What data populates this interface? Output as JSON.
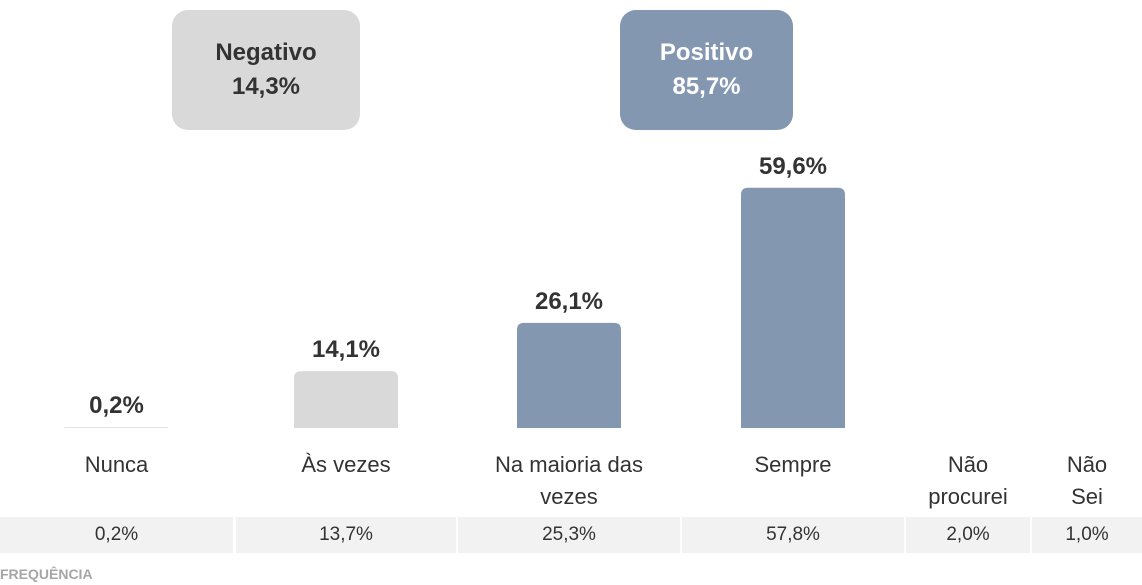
{
  "chart_data": {
    "type": "bar",
    "categories": [
      "Nunca",
      "Às vezes",
      "Na maioria das vezes",
      "Sempre",
      "Não procurei",
      "Não Sei"
    ],
    "values": [
      0.2,
      14.1,
      26.1,
      59.6,
      null,
      null
    ],
    "value_labels": [
      "0,2%",
      "14,1%",
      "26,1%",
      "59,6%",
      null,
      null
    ],
    "colors": [
      "#d9d9d9",
      "#d9d9d9",
      "#8497b0",
      "#8497b0",
      null,
      null
    ],
    "groups": [
      {
        "label": "Negativo",
        "value_label": "14,3%",
        "color": "#d9d9d9"
      },
      {
        "label": "Positivo",
        "value_label": "85,7%",
        "color": "#8497b0"
      }
    ]
  },
  "table": {
    "row": [
      "0,2%",
      "13,7%",
      "25,3%",
      "57,8%",
      "2,0%",
      "1,0%"
    ],
    "footer": "FREQUÊNCIA"
  }
}
